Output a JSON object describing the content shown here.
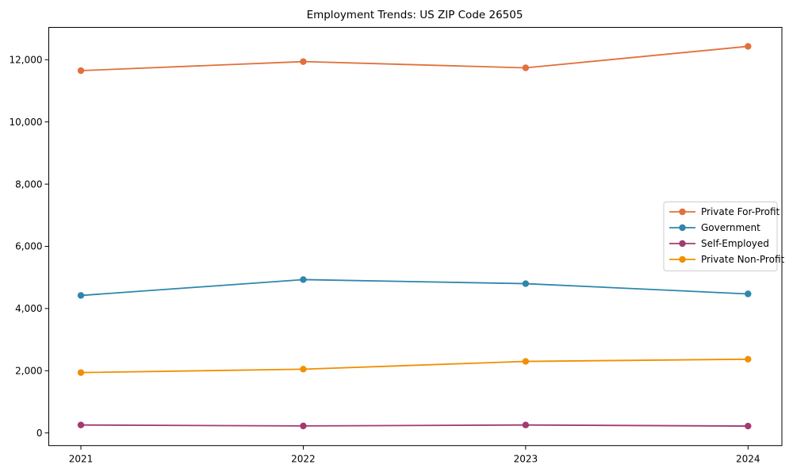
{
  "chart_data": {
    "type": "line",
    "title": "Employment Trends: US ZIP Code 26505",
    "xlabel": "",
    "ylabel": "",
    "categories": [
      "2021",
      "2022",
      "2023",
      "2024"
    ],
    "series": [
      {
        "name": "Private For-Profit",
        "color": "#E1703C",
        "values": [
          11650,
          11940,
          11740,
          12430
        ]
      },
      {
        "name": "Government",
        "color": "#2E86AB",
        "values": [
          4420,
          4930,
          4800,
          4470
        ]
      },
      {
        "name": "Self-Employed",
        "color": "#A23B72",
        "values": [
          255,
          225,
          255,
          220
        ]
      },
      {
        "name": "Private Non-Profit",
        "color": "#F18F01",
        "values": [
          1940,
          2050,
          2300,
          2370
        ]
      }
    ],
    "yticks": [
      0,
      2000,
      4000,
      6000,
      8000,
      10000,
      12000
    ],
    "ytick_labels": [
      "0",
      "2,000",
      "4,000",
      "6,000",
      "8,000",
      "10,000",
      "12,000"
    ],
    "ylim": [
      -400,
      13060
    ],
    "grid": false,
    "marker": "circle",
    "legend": {
      "position": "center-right",
      "labels": [
        "Private For-Profit",
        "Government",
        "Self-Employed",
        "Private Non-Profit"
      ]
    }
  }
}
